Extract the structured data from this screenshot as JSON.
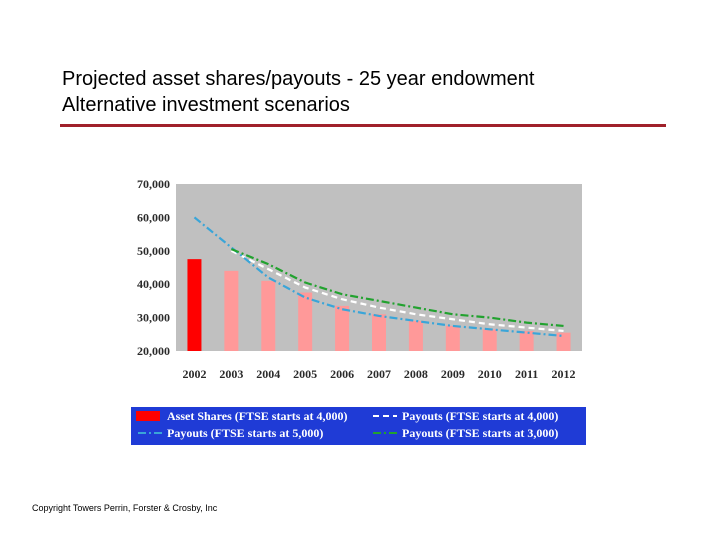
{
  "slide": {
    "title_line1": "Projected asset shares/payouts - 25 year endowment",
    "title_line2": "Alternative investment scenarios",
    "copyright": "Copyright Towers Perrin, Forster & Crosby, Inc"
  },
  "colors": {
    "accent_rule": "#a0202a",
    "plot_background": "#c0c0c0",
    "legend_background": "#1f3bd6"
  },
  "chart_data": {
    "type": "bar",
    "categories": [
      "2002",
      "2003",
      "2004",
      "2005",
      "2006",
      "2007",
      "2008",
      "2009",
      "2010",
      "2011",
      "2012"
    ],
    "x": [
      2002,
      2003,
      2004,
      2005,
      2006,
      2007,
      2008,
      2009,
      2010,
      2011,
      2012
    ],
    "ylim": [
      20000,
      70000
    ],
    "yticks": [
      20000,
      30000,
      40000,
      50000,
      60000,
      70000
    ],
    "ytick_labels": [
      "20,000",
      "30,000",
      "40,000",
      "50,000",
      "60,000",
      "70,000"
    ],
    "grid": false,
    "legend_position": "bottom",
    "series": [
      {
        "name": "Asset Shares (FTSE starts at 4,000)",
        "kind": "bar",
        "color": "#ff9999",
        "highlight_first_color": "#ff0000",
        "values": [
          47500,
          44000,
          41000,
          37500,
          33500,
          31000,
          29000,
          27500,
          26500,
          26000,
          25500
        ]
      },
      {
        "name": "Payouts (FTSE starts at 4,000)",
        "kind": "line",
        "color": "#ffffff",
        "values": [
          null,
          50000,
          44500,
          39000,
          35500,
          33000,
          31000,
          29500,
          28000,
          27000,
          26000
        ]
      },
      {
        "name": "Payouts (FTSE starts at 5,000)",
        "kind": "line",
        "color": "#3aa5d8",
        "values": [
          60000,
          51000,
          42000,
          36000,
          32500,
          30500,
          29000,
          27500,
          26500,
          25500,
          24500
        ]
      },
      {
        "name": "Payouts (FTSE starts at 3,000)",
        "kind": "line",
        "color": "#22a22f",
        "values": [
          null,
          50500,
          46000,
          40500,
          37000,
          35000,
          33000,
          31000,
          30000,
          28500,
          27500
        ]
      }
    ]
  }
}
